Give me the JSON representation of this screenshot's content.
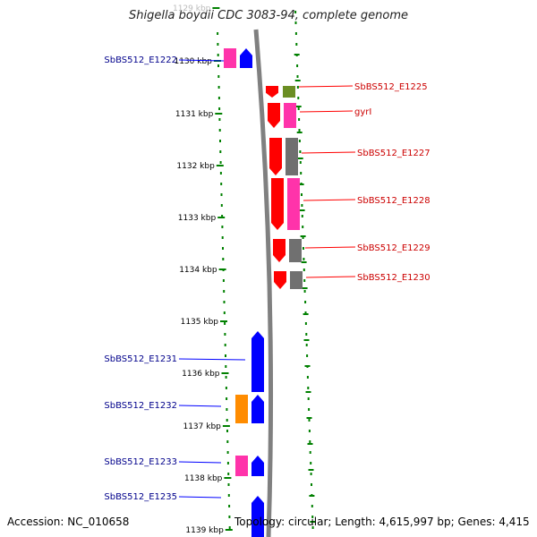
{
  "title": "Shigella boydii CDC 3083-94, complete genome",
  "footer": {
    "accession_label": "Accession:",
    "accession": "NC_010658",
    "topology_label": "Topology:",
    "topology": "circular",
    "length_label": "Length:",
    "length": "4,615,997 bp",
    "genes_label": "Genes:",
    "genes": "4,415"
  },
  "map_data": {
    "tick_labels": [
      "1129 kbp",
      "1130 kbp",
      "1131 kbp",
      "1132 kbp",
      "1133 kbp",
      "1134 kbp",
      "1135 kbp",
      "1136 kbp",
      "1137 kbp",
      "1138 kbp",
      "1139 kbp"
    ],
    "colors": {
      "forward_gene": "#0000ff",
      "reverse_gene": "#ff0000",
      "magenta": "#ff33aa",
      "gray": "#707070",
      "olive": "#6b8e23",
      "orange": "#ff8c00",
      "tick": "#008000",
      "backbone": "#808080",
      "forward_label": "#00008b",
      "reverse_label": "#cc0000"
    },
    "forward_genes": [
      {
        "id": "SbBS512_E1222",
        "label": "SbBS512_E1222",
        "cog_color": "magenta"
      },
      {
        "id": "SbBS512_E1231",
        "label": "SbBS512_E1231",
        "cog_color": null
      },
      {
        "id": "SbBS512_E1232",
        "label": "SbBS512_E1232",
        "cog_color": "orange"
      },
      {
        "id": "SbBS512_E1233",
        "label": "SbBS512_E1233",
        "cog_color": "magenta"
      },
      {
        "id": "SbBS512_E1235",
        "label": "SbBS512_E1235",
        "cog_color": null
      }
    ],
    "reverse_genes": [
      {
        "id": "SbBS512_E1225",
        "label": "SbBS512_E1225",
        "cog_color": "olive"
      },
      {
        "id": "gyrI",
        "label": "gyrI",
        "cog_color": "magenta"
      },
      {
        "id": "SbBS512_E1227",
        "label": "SbBS512_E1227",
        "cog_color": "gray"
      },
      {
        "id": "SbBS512_E1228",
        "label": "SbBS512_E1228",
        "cog_color": "magenta"
      },
      {
        "id": "SbBS512_E1229",
        "label": "SbBS512_E1229",
        "cog_color": "gray"
      },
      {
        "id": "SbBS512_E1230",
        "label": "SbBS512_E1230",
        "cog_color": "gray"
      }
    ]
  }
}
